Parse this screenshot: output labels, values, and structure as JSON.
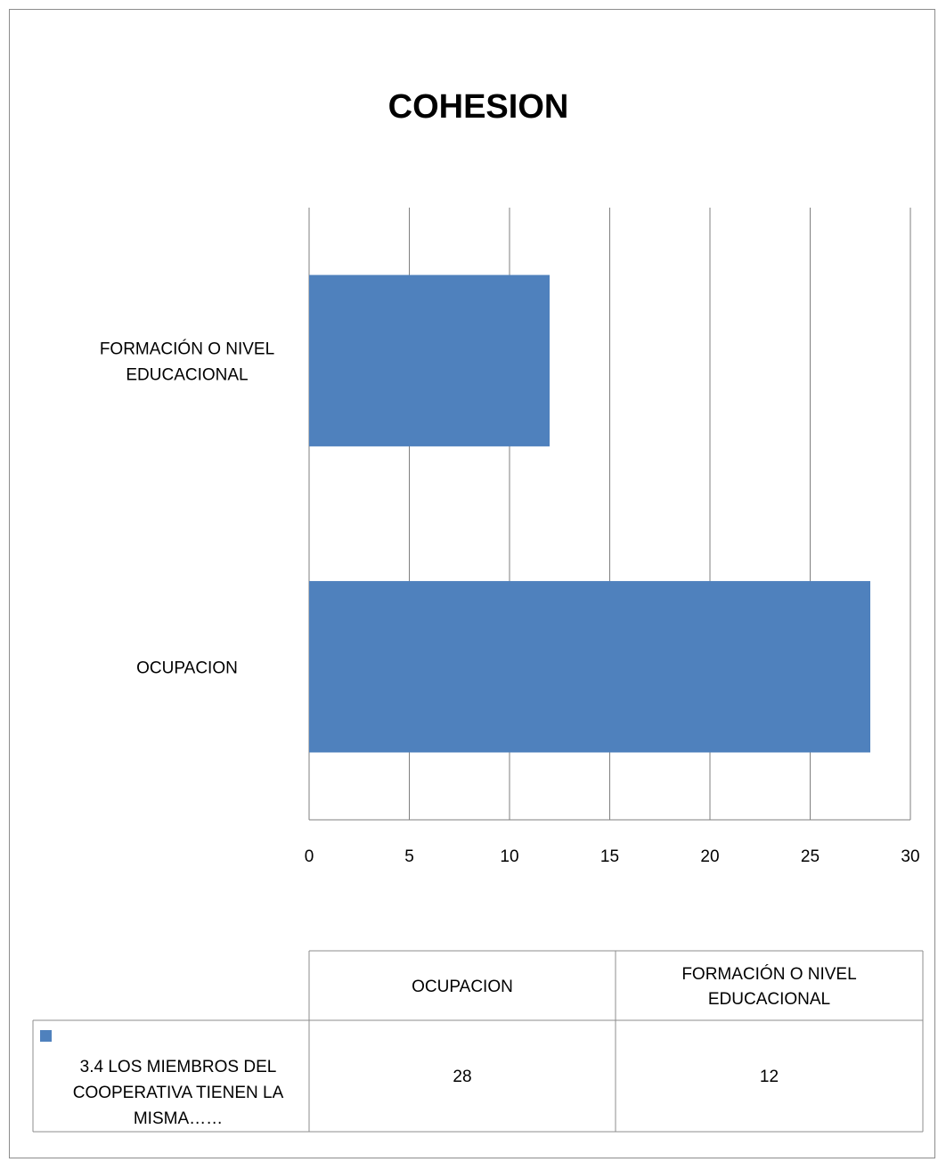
{
  "chart_data": {
    "type": "bar",
    "orientation": "horizontal",
    "title": "COHESION",
    "categories": [
      "FORMACIÓN O NIVEL EDUCACIONAL",
      "OCUPACION"
    ],
    "category_lines": [
      [
        "FORMACIÓN O NIVEL",
        "EDUCACIONAL"
      ],
      [
        "OCUPACION"
      ]
    ],
    "series": [
      {
        "name": "3.4 LOS MIEMBROS DEL COOPERATIVA TIENEN LA MISMA……",
        "values": [
          12,
          28
        ],
        "color": "#4f81bd"
      }
    ],
    "xlim": [
      0,
      30
    ],
    "xticks": [
      0,
      5,
      10,
      15,
      20,
      25,
      30
    ],
    "grid": "vertical",
    "legend": "data-table"
  },
  "data_table": {
    "headers": [
      [
        "OCUPACION"
      ],
      [
        "FORMACIÓN O NIVEL",
        "EDUCACIONAL"
      ]
    ],
    "row_label_lines": [
      "3.4 LOS MIEMBROS DEL",
      "COOPERATIVA TIENEN LA",
      "MISMA……"
    ],
    "values": [
      "28",
      "12"
    ]
  }
}
